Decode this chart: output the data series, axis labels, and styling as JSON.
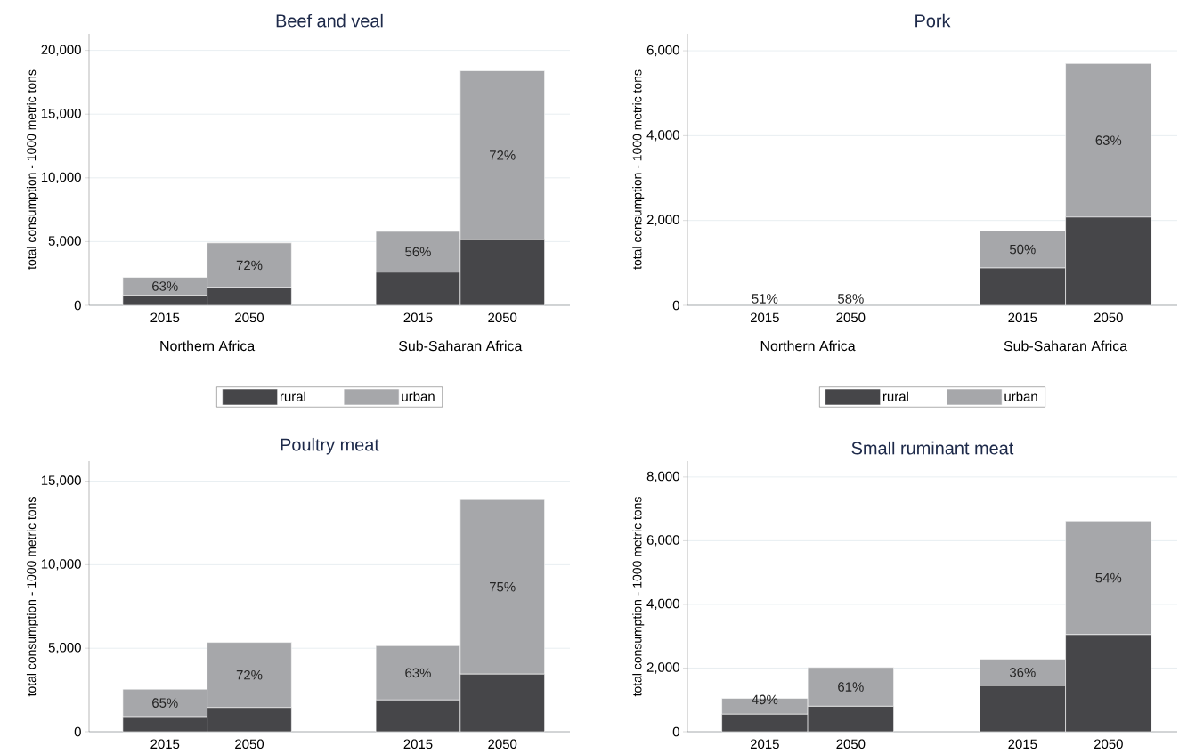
{
  "chart_data": [
    {
      "type": "bar",
      "stacked": true,
      "title": "Beef and veal",
      "ylabel": "total consumption - 1000 metric tons",
      "categories": [
        "2015",
        "2050",
        null,
        "2015",
        "2050"
      ],
      "series": [
        {
          "name": "rural",
          "color": "#464649",
          "values": [
            800,
            1400,
            null,
            2600,
            5150
          ]
        },
        {
          "name": "urban",
          "color": "#a6a7aa",
          "values": [
            1400,
            3500,
            null,
            3200,
            13250
          ]
        }
      ],
      "ylim": [
        0,
        21300
      ],
      "yticks": [
        0,
        {
          "value": 5000,
          "label": "5,000"
        },
        {
          "value": 10000,
          "label": "10,000"
        },
        {
          "value": 15000,
          "label": "15,000"
        },
        {
          "value": 20000,
          "label": "20,000"
        }
      ],
      "grid": "y",
      "legend": "bottom",
      "annotations": [
        "Northern Africa",
        "Sub-Saharan Africa",
        "63%",
        "72%",
        "56%",
        "72%"
      ]
    },
    {
      "type": "bar",
      "stacked": true,
      "title": "Pork",
      "ylabel": "total consumption - 1000 metric tons",
      "categories": [
        "2015",
        "2050",
        null,
        "2015",
        "2050"
      ],
      "series": [
        {
          "name": "rural",
          "color": "#464649",
          "values": [
            0,
            0,
            null,
            880,
            2080
          ]
        },
        {
          "name": "urban",
          "color": "#a6a7aa",
          "values": [
            0,
            0,
            null,
            880,
            3620
          ]
        }
      ],
      "ylim": [
        0,
        6400
      ],
      "yticks": [
        0,
        {
          "value": 2000,
          "label": "2,000"
        },
        {
          "value": 4000,
          "label": "4,000"
        },
        {
          "value": 6000,
          "label": "6,000"
        }
      ],
      "grid": "y",
      "legend": "bottom",
      "annotations": [
        "Northern Africa",
        "Sub-Saharan Africa",
        "51%",
        "58%",
        "50%",
        "63%"
      ]
    },
    {
      "type": "bar",
      "stacked": true,
      "title": "Poultry meat",
      "ylabel": "total consumption - 1000 metric tons",
      "categories": [
        "2015",
        "2050",
        null,
        "2015",
        "2050"
      ],
      "series": [
        {
          "color": "#464649",
          "values": [
            900,
            1450,
            null,
            1900,
            3450
          ]
        },
        {
          "color": "#a6a7aa",
          "values": [
            1650,
            3900,
            null,
            3250,
            10450
          ]
        }
      ],
      "ylim": [
        0,
        16200
      ],
      "yticks": [
        0,
        {
          "value": 5000,
          "label": "5,000"
        },
        {
          "value": 10000,
          "label": "10,000"
        },
        {
          "value": 15000,
          "label": "15,000"
        }
      ],
      "grid": "y",
      "annotations": [
        "65%",
        "72%",
        "63%",
        "75%"
      ]
    },
    {
      "type": "bar",
      "stacked": true,
      "title": "Small ruminant meat",
      "ylabel": "total consumption - 1000 metric tons",
      "categories": [
        "2015",
        "2050",
        null,
        "2015",
        "2050"
      ],
      "series": [
        {
          "color": "#464649",
          "values": [
            550,
            800,
            null,
            1450,
            3050
          ]
        },
        {
          "color": "#a6a7aa",
          "values": [
            500,
            1220,
            null,
            830,
            3570
          ]
        }
      ],
      "ylim": [
        0,
        8500
      ],
      "yticks": [
        0,
        {
          "value": 2000,
          "label": "2,000"
        },
        {
          "value": 4000,
          "label": "4,000"
        },
        {
          "value": 6000,
          "label": "6,000"
        },
        {
          "value": 8000,
          "label": "8,000"
        }
      ],
      "grid": "y",
      "annotations": [
        "49%",
        "61%",
        "36%",
        "54%"
      ]
    }
  ]
}
